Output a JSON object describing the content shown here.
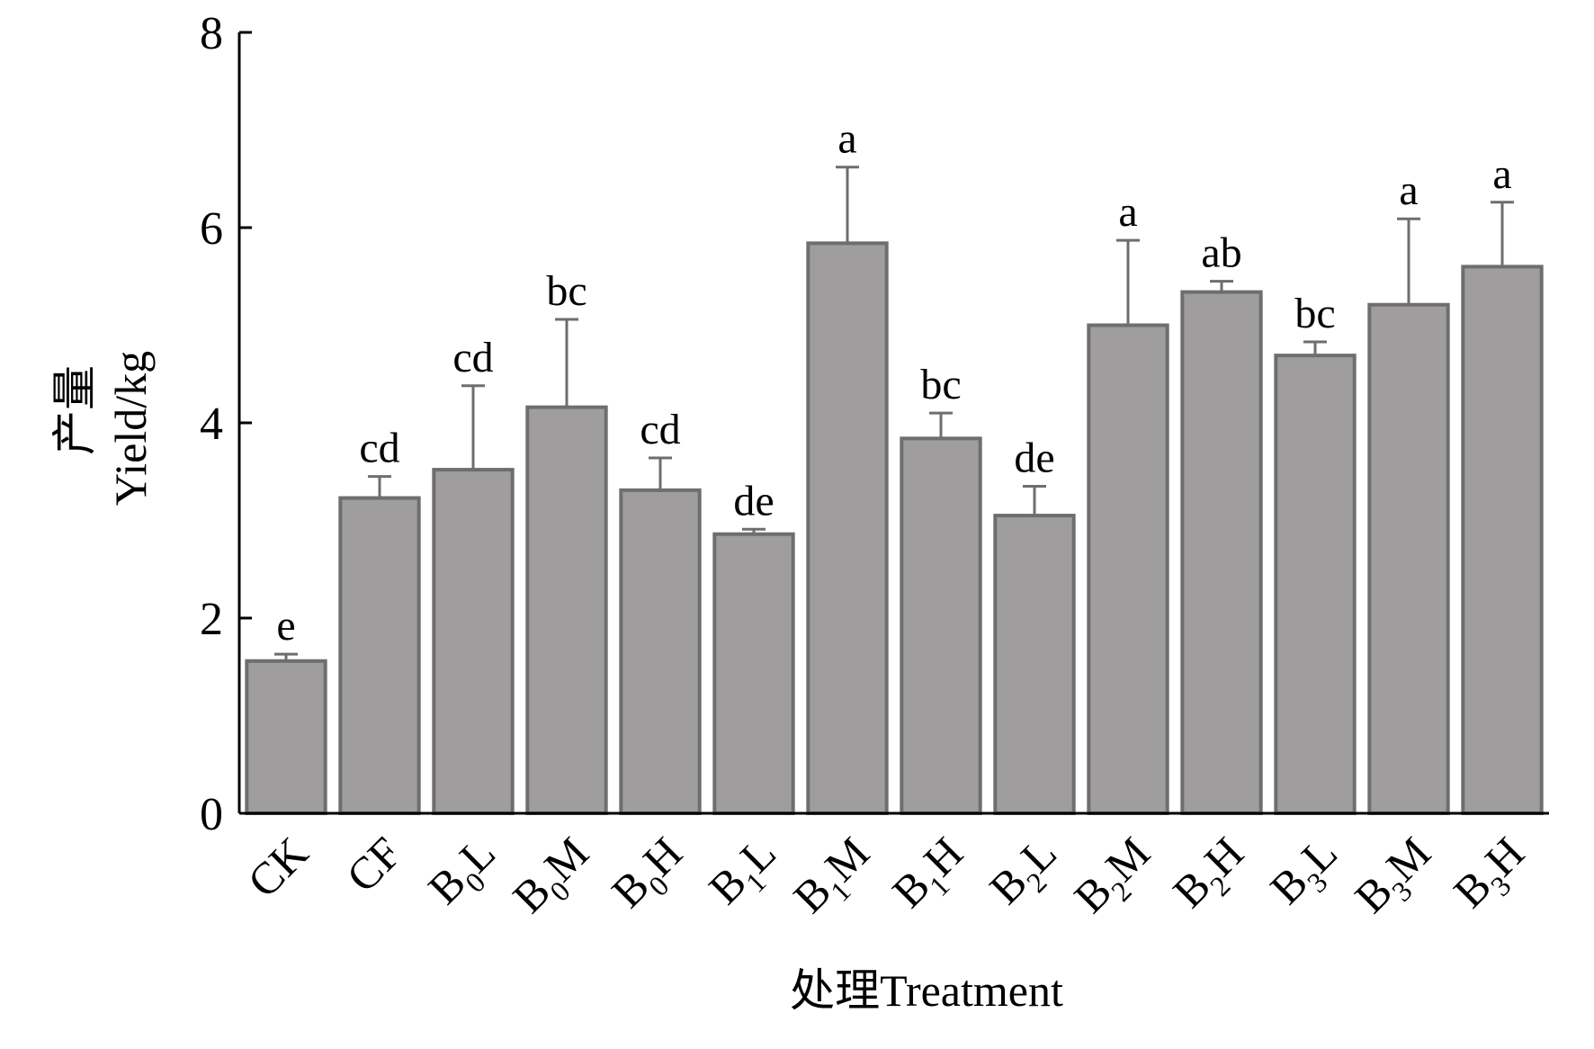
{
  "chart_data": {
    "type": "bar",
    "categories": [
      {
        "main": "CK",
        "sub": "",
        "suffix": ""
      },
      {
        "main": "CF",
        "sub": "",
        "suffix": ""
      },
      {
        "main": "B",
        "sub": "0",
        "suffix": "L"
      },
      {
        "main": "B",
        "sub": "0",
        "suffix": "M"
      },
      {
        "main": "B",
        "sub": "0",
        "suffix": "H"
      },
      {
        "main": "B",
        "sub": "1",
        "suffix": "L"
      },
      {
        "main": "B",
        "sub": "1",
        "suffix": "M"
      },
      {
        "main": "B",
        "sub": "1",
        "suffix": "H"
      },
      {
        "main": "B",
        "sub": "2",
        "suffix": "L"
      },
      {
        "main": "B",
        "sub": "2",
        "suffix": "M"
      },
      {
        "main": "B",
        "sub": "2",
        "suffix": "H"
      },
      {
        "main": "B",
        "sub": "3",
        "suffix": "L"
      },
      {
        "main": "B",
        "sub": "3",
        "suffix": "M"
      },
      {
        "main": "B",
        "sub": "3",
        "suffix": "H"
      }
    ],
    "values": [
      1.56,
      3.23,
      3.52,
      4.16,
      3.31,
      2.86,
      5.84,
      3.84,
      3.05,
      5.0,
      5.34,
      4.69,
      5.21,
      5.6
    ],
    "errors": [
      0.07,
      0.22,
      0.86,
      0.9,
      0.33,
      0.05,
      0.78,
      0.26,
      0.3,
      0.87,
      0.11,
      0.14,
      0.88,
      0.66
    ],
    "significance": [
      "e",
      "cd",
      "cd",
      "bc",
      "cd",
      "de",
      "a",
      "bc",
      "de",
      "a",
      "ab",
      "bc",
      "a",
      "a"
    ],
    "ylim": [
      0,
      8
    ],
    "yticks": [
      "0",
      "2",
      "4",
      "6",
      "8"
    ],
    "ylabel_cn": "产量",
    "ylabel_en": "Yield/kg",
    "xlabel": "处理Treatment",
    "bar_color": "#a09d9e",
    "bar_edge_color": "#6e6e6e",
    "grid": false
  }
}
